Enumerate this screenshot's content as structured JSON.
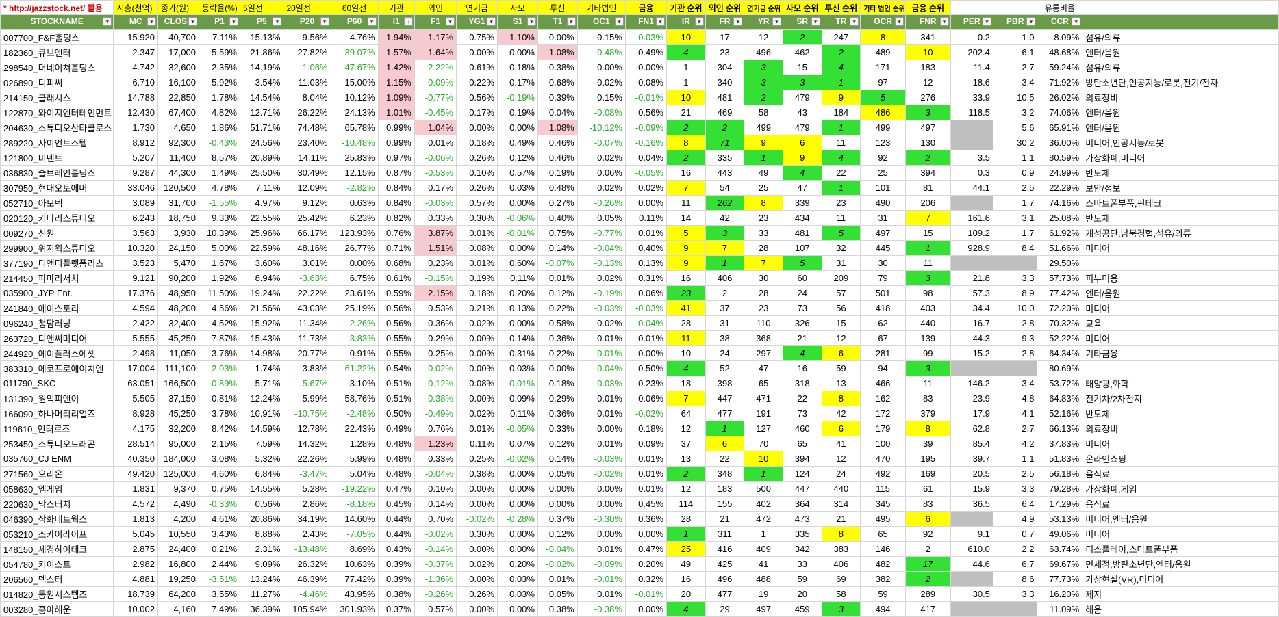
{
  "top_captions": {
    "link": "* http://jazzstock.net/ 활용",
    "captions": [
      "시총(천억)",
      "종가(원)",
      "등락율(%)",
      "5일전",
      "20일전",
      "60일전",
      "기관",
      "외인",
      "연기금",
      "사모",
      "투신",
      "기타법인",
      "금융",
      "기관 순위",
      "외인 순위",
      "연기금 순위",
      "사모 순위",
      "투신 순위",
      "기타 법인 순위",
      "금융 순위",
      "",
      "",
      "유통비율"
    ]
  },
  "headers": [
    "STOCKNAME",
    "MC",
    "CLOSE",
    "P1",
    "P5",
    "P20",
    "P60",
    "I1",
    "F1",
    "YG1",
    "S1",
    "T1",
    "OC1",
    "FN1",
    "IR",
    "FR",
    "YR",
    "SR",
    "TR",
    "OCR",
    "FNR",
    "PER",
    "PBR",
    "CCR",
    ""
  ],
  "rows": [
    [
      "007700_F&F홀딩스",
      "15.920",
      "40,700",
      "7.11%",
      "15.13%",
      "9.56%",
      "4.76%",
      "1.94%",
      "1.17%",
      "0.75%",
      "1.10%",
      "0.00%",
      "0.15%",
      "-0.03%",
      "10",
      "17",
      "12",
      "2",
      "247",
      "8",
      "341",
      "0.2",
      "1.0",
      "8.09%",
      "섬유/의류"
    ],
    [
      "182360_큐브엔터",
      "2.347",
      "17,000",
      "5.59%",
      "21.86%",
      "27.82%",
      "-39.07%",
      "1.57%",
      "1.64%",
      "0.00%",
      "0.00%",
      "1.08%",
      "-0.48%",
      "0.49%",
      "4",
      "23",
      "496",
      "462",
      "2",
      "489",
      "10",
      "202.4",
      "6.1",
      "48.68%",
      "엔터/음원"
    ],
    [
      "298540_더네이쳐홀딩스",
      "4.742",
      "32,600",
      "2.35%",
      "14.19%",
      "-1.06%",
      "-47.67%",
      "1.42%",
      "-2.22%",
      "0.61%",
      "0.18%",
      "0.38%",
      "0.00%",
      "0.00%",
      "1",
      "304",
      "3",
      "15",
      "4",
      "171",
      "183",
      "11.4",
      "2.7",
      "59.24%",
      "섬유/의류"
    ],
    [
      "026890_디피씨",
      "6.710",
      "16,100",
      "5.92%",
      "3.54%",
      "11.03%",
      "15.00%",
      "1.15%",
      "-0.09%",
      "0.22%",
      "0.17%",
      "0.68%",
      "0.02%",
      "0.08%",
      "1",
      "340",
      "3",
      "3",
      "1",
      "97",
      "12",
      "18.6",
      "3.4",
      "71.92%",
      "방탄소년단,인공지능/로봇,전기/전자"
    ],
    [
      "214150_클래시스",
      "14.788",
      "22,850",
      "1.78%",
      "14.54%",
      "8.04%",
      "10.12%",
      "1.09%",
      "-0.77%",
      "0.56%",
      "-0.19%",
      "0.39%",
      "0.15%",
      "-0.01%",
      "10",
      "481",
      "2",
      "479",
      "9",
      "5",
      "276",
      "33.9",
      "10.5",
      "26.02%",
      "의료장비"
    ],
    [
      "122870_와이지엔터테인먼트",
      "12.430",
      "67,400",
      "4.82%",
      "12.71%",
      "26.22%",
      "24.13%",
      "1.01%",
      "-0.45%",
      "0.17%",
      "0.19%",
      "0.04%",
      "-0.08%",
      "0.56%",
      "21",
      "469",
      "58",
      "43",
      "184",
      "486",
      "3",
      "118.5",
      "3.2",
      "74.06%",
      "엔터/음원"
    ],
    [
      "204630_스튜디오산타클로스",
      "1.730",
      "4,650",
      "1.86%",
      "51.71%",
      "74.48%",
      "65.78%",
      "0.99%",
      "1.04%",
      "0.00%",
      "0.00%",
      "1.08%",
      "-10.12%",
      "-0.09%",
      "2",
      "2",
      "499",
      "479",
      "1",
      "499",
      "497",
      "",
      "5.6",
      "65.91%",
      "엔터/음원"
    ],
    [
      "289220_자이언트스텝",
      "8.912",
      "92,300",
      "-0.43%",
      "24.56%",
      "23.40%",
      "-10.48%",
      "0.99%",
      "0.01%",
      "0.18%",
      "0.49%",
      "0.46%",
      "-0.07%",
      "-0.16%",
      "8",
      "71",
      "9",
      "6",
      "11",
      "123",
      "130",
      "",
      "30.2",
      "36.00%",
      "미디어,인공지능/로봇"
    ],
    [
      "121800_비덴트",
      "5.207",
      "11,400",
      "8.57%",
      "20.89%",
      "14.11%",
      "25.83%",
      "0.97%",
      "-0.06%",
      "0.26%",
      "0.12%",
      "0.46%",
      "0.02%",
      "0.04%",
      "2",
      "335",
      "1",
      "9",
      "4",
      "92",
      "2",
      "3.5",
      "1.1",
      "80.59%",
      "가상화폐,미디어"
    ],
    [
      "036830_솔브레인홀딩스",
      "9.287",
      "44,300",
      "1.49%",
      "25.50%",
      "30.49%",
      "12.15%",
      "0.87%",
      "-0.53%",
      "0.10%",
      "0.57%",
      "0.19%",
      "0.06%",
      "-0.05%",
      "16",
      "443",
      "49",
      "4",
      "22",
      "25",
      "394",
      "0.3",
      "0.9",
      "24.99%",
      "반도체"
    ],
    [
      "307950_현대오토에버",
      "33.046",
      "120,500",
      "4.78%",
      "7.11%",
      "12.09%",
      "-2.82%",
      "0.84%",
      "0.17%",
      "0.26%",
      "0.03%",
      "0.48%",
      "0.02%",
      "0.02%",
      "7",
      "54",
      "25",
      "47",
      "1",
      "101",
      "81",
      "44.1",
      "2.5",
      "22.29%",
      "보안/정보"
    ],
    [
      "052710_아모텍",
      "3.089",
      "31,700",
      "-1.55%",
      "4.97%",
      "9.12%",
      "0.63%",
      "0.84%",
      "-0.03%",
      "0.57%",
      "0.00%",
      "0.27%",
      "-0.26%",
      "0.00%",
      "11",
      "262",
      "8",
      "339",
      "23",
      "490",
      "206",
      "",
      "1.7",
      "74.16%",
      "스마트폰부품,핀테크"
    ],
    [
      "020120_키다리스튜디오",
      "6.243",
      "18,750",
      "9.33%",
      "22.55%",
      "25.42%",
      "6.23%",
      "0.82%",
      "0.33%",
      "0.30%",
      "-0.06%",
      "0.40%",
      "0.05%",
      "0.11%",
      "14",
      "42",
      "23",
      "434",
      "11",
      "31",
      "7",
      "161.6",
      "3.1",
      "25.08%",
      "반도체"
    ],
    [
      "009270_신원",
      "3.563",
      "3,930",
      "10.39%",
      "25.96%",
      "66.17%",
      "123.93%",
      "0.76%",
      "3.87%",
      "0.01%",
      "-0.01%",
      "0.75%",
      "-0.77%",
      "0.01%",
      "5",
      "3",
      "33",
      "481",
      "5",
      "497",
      "15",
      "109.2",
      "1.7",
      "61.92%",
      "개성공단,남북경협,섬유/의류"
    ],
    [
      "299900_위지윅스튜디오",
      "10.320",
      "24,150",
      "5.00%",
      "22.59%",
      "48.16%",
      "26.77%",
      "0.71%",
      "1.51%",
      "0.08%",
      "0.00%",
      "0.14%",
      "-0.04%",
      "0.40%",
      "9",
      "7",
      "28",
      "107",
      "32",
      "445",
      "1",
      "928.9",
      "8.4",
      "51.66%",
      "미디어"
    ],
    [
      "377190_디앤디플랫폼리츠",
      "3.523",
      "5,470",
      "1.67%",
      "3.60%",
      "3.01%",
      "0.00%",
      "0.68%",
      "0.23%",
      "0.01%",
      "0.60%",
      "-0.07%",
      "-0.13%",
      "0.13%",
      "9",
      "1",
      "7",
      "5",
      "31",
      "30",
      "11",
      "",
      "",
      "29.50%",
      ""
    ],
    [
      "214450_파마리서치",
      "9.121",
      "90,200",
      "1.92%",
      "8.94%",
      "-3.63%",
      "6.75%",
      "0.61%",
      "-0.15%",
      "0.19%",
      "0.11%",
      "0.01%",
      "0.02%",
      "0.31%",
      "16",
      "406",
      "30",
      "60",
      "209",
      "79",
      "3",
      "21.8",
      "3.3",
      "57.73%",
      "피부미용"
    ],
    [
      "035900_JYP Ent.",
      "17.376",
      "48,950",
      "11.50%",
      "19.24%",
      "22.22%",
      "23.61%",
      "0.59%",
      "2.15%",
      "0.18%",
      "0.20%",
      "0.12%",
      "-0.19%",
      "0.06%",
      "23",
      "2",
      "28",
      "24",
      "57",
      "501",
      "98",
      "57.3",
      "8.9",
      "77.42%",
      "엔터/음원"
    ],
    [
      "241840_에이스토리",
      "4.594",
      "48,200",
      "4.56%",
      "21.56%",
      "43.03%",
      "25.19%",
      "0.56%",
      "0.53%",
      "0.21%",
      "0.13%",
      "0.22%",
      "-0.03%",
      "-0.03%",
      "41",
      "37",
      "23",
      "73",
      "56",
      "418",
      "403",
      "34.4",
      "10.0",
      "72.20%",
      "미디어"
    ],
    [
      "096240_청담러닝",
      "2.422",
      "32,400",
      "4.52%",
      "15.92%",
      "11.34%",
      "-2.26%",
      "0.56%",
      "0.36%",
      "0.02%",
      "0.00%",
      "0.58%",
      "0.02%",
      "-0.04%",
      "28",
      "31",
      "110",
      "326",
      "15",
      "62",
      "440",
      "16.7",
      "2.8",
      "70.32%",
      "교육"
    ],
    [
      "263720_디앤씨미디어",
      "5.555",
      "45,250",
      "7.87%",
      "15.43%",
      "11.73%",
      "-3.83%",
      "0.55%",
      "0.29%",
      "0.00%",
      "0.14%",
      "0.36%",
      "0.01%",
      "0.01%",
      "11",
      "38",
      "368",
      "21",
      "12",
      "67",
      "139",
      "44.3",
      "9.3",
      "52.22%",
      "미디어"
    ],
    [
      "244920_에이플러스에셋",
      "2.498",
      "11,050",
      "3.76%",
      "14.98%",
      "20.77%",
      "0.91%",
      "0.55%",
      "0.25%",
      "0.00%",
      "0.31%",
      "0.22%",
      "-0.01%",
      "0.00%",
      "10",
      "24",
      "297",
      "4",
      "6",
      "281",
      "99",
      "15.2",
      "2.8",
      "64.34%",
      "기타금융"
    ],
    [
      "383310_에코프로에이치엔",
      "17.004",
      "111,100",
      "-2.03%",
      "1.74%",
      "3.83%",
      "-61.22%",
      "0.54%",
      "-0.02%",
      "0.00%",
      "0.03%",
      "0.00%",
      "-0.04%",
      "0.50%",
      "4",
      "52",
      "47",
      "16",
      "59",
      "94",
      "3",
      "",
      "",
      "80.69%",
      ""
    ],
    [
      "011790_SKC",
      "63.051",
      "166,500",
      "-0.89%",
      "5.71%",
      "-5.67%",
      "3.10%",
      "0.51%",
      "-0.12%",
      "0.08%",
      "-0.01%",
      "0.18%",
      "-0.03%",
      "0.23%",
      "18",
      "398",
      "65",
      "318",
      "13",
      "466",
      "11",
      "146.2",
      "3.4",
      "53.72%",
      "태양광,화학"
    ],
    [
      "131390_원익피앤이",
      "5.505",
      "37,150",
      "0.81%",
      "12.24%",
      "5.99%",
      "58.76%",
      "0.51%",
      "-0.38%",
      "0.00%",
      "0.09%",
      "0.29%",
      "0.01%",
      "0.06%",
      "7",
      "447",
      "471",
      "22",
      "8",
      "162",
      "83",
      "23.9",
      "4.8",
      "64.83%",
      "전기차/2차전지"
    ],
    [
      "166090_하나머티리얼즈",
      "8.928",
      "45,250",
      "3.78%",
      "10.91%",
      "-10.75%",
      "-2.48%",
      "0.50%",
      "-0.49%",
      "0.02%",
      "0.11%",
      "0.36%",
      "0.01%",
      "-0.02%",
      "64",
      "477",
      "191",
      "73",
      "42",
      "172",
      "379",
      "17.9",
      "4.1",
      "52.16%",
      "반도체"
    ],
    [
      "119610_인터로조",
      "4.175",
      "32,200",
      "8.42%",
      "14.59%",
      "12.78%",
      "22.43%",
      "0.49%",
      "0.76%",
      "0.01%",
      "-0.05%",
      "0.33%",
      "0.00%",
      "0.18%",
      "12",
      "1",
      "127",
      "460",
      "6",
      "179",
      "8",
      "62.8",
      "2.7",
      "66.13%",
      "의료장비"
    ],
    [
      "253450_스튜디오드래곤",
      "28.514",
      "95,000",
      "2.15%",
      "7.59%",
      "14.32%",
      "1.28%",
      "0.48%",
      "1.23%",
      "0.11%",
      "0.07%",
      "0.12%",
      "0.01%",
      "0.09%",
      "37",
      "6",
      "70",
      "65",
      "41",
      "100",
      "39",
      "85.4",
      "4.2",
      "37.83%",
      "미디어"
    ],
    [
      "035760_CJ ENM",
      "40.350",
      "184,000",
      "3.08%",
      "5.32%",
      "22.26%",
      "5.99%",
      "0.48%",
      "0.33%",
      "0.25%",
      "-0.02%",
      "0.14%",
      "-0.03%",
      "0.01%",
      "13",
      "22",
      "10",
      "394",
      "12",
      "470",
      "195",
      "39.7",
      "1.1",
      "51.83%",
      "온라인쇼핑"
    ],
    [
      "271560_오리온",
      "49.420",
      "125,000",
      "4.60%",
      "6.84%",
      "-3.47%",
      "5.04%",
      "0.48%",
      "-0.04%",
      "0.38%",
      "0.00%",
      "0.05%",
      "-0.02%",
      "0.01%",
      "2",
      "348",
      "1",
      "124",
      "24",
      "492",
      "169",
      "20.5",
      "2.5",
      "56.18%",
      "음식료"
    ],
    [
      "058630_엠게임",
      "1.831",
      "9,370",
      "0.75%",
      "14.55%",
      "5.28%",
      "-19.22%",
      "0.47%",
      "0.10%",
      "0.00%",
      "0.00%",
      "0.00%",
      "0.00%",
      "0.01%",
      "12",
      "183",
      "500",
      "447",
      "440",
      "115",
      "61",
      "15.9",
      "3.3",
      "79.28%",
      "가상화폐,게임"
    ],
    [
      "220630_맘스터치",
      "4.572",
      "4,490",
      "-0.33%",
      "0.56%",
      "2.86%",
      "-8.18%",
      "0.45%",
      "0.14%",
      "0.00%",
      "0.00%",
      "0.00%",
      "0.00%",
      "0.45%",
      "114",
      "155",
      "402",
      "364",
      "314",
      "345",
      "83",
      "36.5",
      "6.4",
      "17.29%",
      "음식료"
    ],
    [
      "046390_삼화네트웍스",
      "1.813",
      "4,200",
      "4.61%",
      "20.86%",
      "34.19%",
      "14.60%",
      "0.44%",
      "0.70%",
      "-0.02%",
      "-0.28%",
      "0.37%",
      "-0.30%",
      "0.36%",
      "28",
      "21",
      "472",
      "473",
      "21",
      "495",
      "6",
      "",
      "4.9",
      "53.13%",
      "미디어,엔터/음원"
    ],
    [
      "053210_스카이라이프",
      "5.045",
      "10,550",
      "3.43%",
      "8.88%",
      "2.43%",
      "-7.05%",
      "0.44%",
      "-0.02%",
      "0.30%",
      "0.00%",
      "0.12%",
      "0.00%",
      "0.00%",
      "1",
      "311",
      "1",
      "335",
      "8",
      "65",
      "92",
      "9.1",
      "0.7",
      "49.06%",
      "미디어"
    ],
    [
      "148150_세경하이테크",
      "2.875",
      "24,400",
      "0.21%",
      "2.31%",
      "-13.48%",
      "8.69%",
      "0.43%",
      "-0.14%",
      "0.00%",
      "0.00%",
      "-0.04%",
      "0.01%",
      "0.47%",
      "25",
      "416",
      "409",
      "342",
      "383",
      "146",
      "2",
      "610.0",
      "2.2",
      "63.74%",
      "디스플레이,스마트폰부품"
    ],
    [
      "054780_키이스트",
      "2.982",
      "16,800",
      "2.44%",
      "9.09%",
      "26.32%",
      "10.63%",
      "0.39%",
      "-0.37%",
      "0.02%",
      "0.20%",
      "-0.02%",
      "-0.09%",
      "0.20%",
      "49",
      "425",
      "41",
      "33",
      "406",
      "482",
      "17",
      "44.6",
      "6.7",
      "69.67%",
      "면세점,방탄소년단,엔터/음원"
    ],
    [
      "206560_덱스터",
      "4.881",
      "19,250",
      "-3.51%",
      "13.24%",
      "46.39%",
      "77.42%",
      "0.39%",
      "-1.36%",
      "0.00%",
      "0.03%",
      "0.01%",
      "-0.01%",
      "0.32%",
      "16",
      "496",
      "488",
      "59",
      "69",
      "382",
      "2",
      "",
      "8.6",
      "77.73%",
      "가상현실(VR),미디어"
    ],
    [
      "014820_동원시스템즈",
      "18.739",
      "64,200",
      "3.55%",
      "11.27%",
      "-4.46%",
      "43.95%",
      "0.38%",
      "-0.26%",
      "0.26%",
      "0.03%",
      "0.05%",
      "0.01%",
      "-0.01%",
      "20",
      "477",
      "19",
      "20",
      "58",
      "59",
      "289",
      "30.5",
      "3.3",
      "16.20%",
      "제지"
    ],
    [
      "003280_흥아해운",
      "10.002",
      "4,160",
      "7.49%",
      "36.39%",
      "105.94%",
      "301.93%",
      "0.37%",
      "0.57%",
      "0.00%",
      "0.00%",
      "0.38%",
      "-0.38%",
      "0.00%",
      "4",
      "29",
      "497",
      "459",
      "3",
      "494",
      "417",
      "",
      "",
      "11.09%",
      "해운"
    ]
  ],
  "highlights": {
    "pink": [
      [
        0,
        7
      ],
      [
        0,
        8
      ],
      [
        0,
        10
      ],
      [
        1,
        7
      ],
      [
        1,
        8
      ],
      [
        1,
        11
      ],
      [
        2,
        7
      ],
      [
        3,
        7
      ],
      [
        4,
        7
      ],
      [
        5,
        7
      ],
      [
        6,
        8
      ],
      [
        6,
        11
      ],
      [
        13,
        8
      ],
      [
        14,
        8
      ],
      [
        17,
        8
      ],
      [
        27,
        8
      ]
    ],
    "yellow": [
      [
        0,
        14
      ],
      [
        0,
        19
      ],
      [
        1,
        20
      ],
      [
        3,
        18
      ],
      [
        4,
        14
      ],
      [
        4,
        18
      ],
      [
        5,
        19
      ],
      [
        7,
        14
      ],
      [
        7,
        16
      ],
      [
        7,
        17
      ],
      [
        8,
        17
      ],
      [
        10,
        14
      ],
      [
        11,
        16
      ],
      [
        12,
        20
      ],
      [
        13,
        14
      ],
      [
        14,
        14
      ],
      [
        14,
        15
      ],
      [
        15,
        14
      ],
      [
        15,
        16
      ],
      [
        18,
        14
      ],
      [
        20,
        14
      ],
      [
        21,
        18
      ],
      [
        24,
        14
      ],
      [
        24,
        18
      ],
      [
        26,
        18
      ],
      [
        26,
        20
      ],
      [
        27,
        15
      ],
      [
        28,
        16
      ],
      [
        32,
        20
      ],
      [
        33,
        18
      ],
      [
        34,
        14
      ]
    ],
    "green": [
      [
        0,
        17
      ],
      [
        1,
        14
      ],
      [
        1,
        18
      ],
      [
        2,
        16
      ],
      [
        2,
        18
      ],
      [
        3,
        16
      ],
      [
        3,
        17
      ],
      [
        3,
        18
      ],
      [
        4,
        16
      ],
      [
        4,
        19
      ],
      [
        5,
        20
      ],
      [
        6,
        14
      ],
      [
        6,
        15
      ],
      [
        6,
        18
      ],
      [
        7,
        15
      ],
      [
        8,
        14
      ],
      [
        8,
        16
      ],
      [
        8,
        18
      ],
      [
        8,
        20
      ],
      [
        9,
        17
      ],
      [
        10,
        18
      ],
      [
        11,
        15
      ],
      [
        13,
        15
      ],
      [
        13,
        18
      ],
      [
        14,
        20
      ],
      [
        15,
        15
      ],
      [
        15,
        17
      ],
      [
        16,
        20
      ],
      [
        17,
        14
      ],
      [
        21,
        17
      ],
      [
        22,
        14
      ],
      [
        22,
        20
      ],
      [
        26,
        15
      ],
      [
        29,
        14
      ],
      [
        29,
        16
      ],
      [
        33,
        14
      ],
      [
        35,
        20
      ],
      [
        36,
        20
      ],
      [
        38,
        14
      ],
      [
        38,
        18
      ]
    ],
    "gray": [
      [
        6,
        21
      ],
      [
        7,
        21
      ],
      [
        11,
        21
      ],
      [
        15,
        21
      ],
      [
        15,
        22
      ],
      [
        22,
        21
      ],
      [
        22,
        22
      ],
      [
        32,
        21
      ],
      [
        36,
        21
      ],
      [
        38,
        21
      ],
      [
        38,
        22
      ]
    ]
  },
  "colors": {
    "header_bg": "#6a9b46",
    "caption_bg": "#ffff00",
    "pink": "#f8c9cf",
    "yellow": "#ffff00",
    "green": "#33e033",
    "gray": "#bfbfbf",
    "negative": "#22aa22",
    "stripe": "#ebf1de"
  },
  "icons": {
    "filter": "filter-dropdown-icon",
    "sort": "sort-descending-icon"
  }
}
